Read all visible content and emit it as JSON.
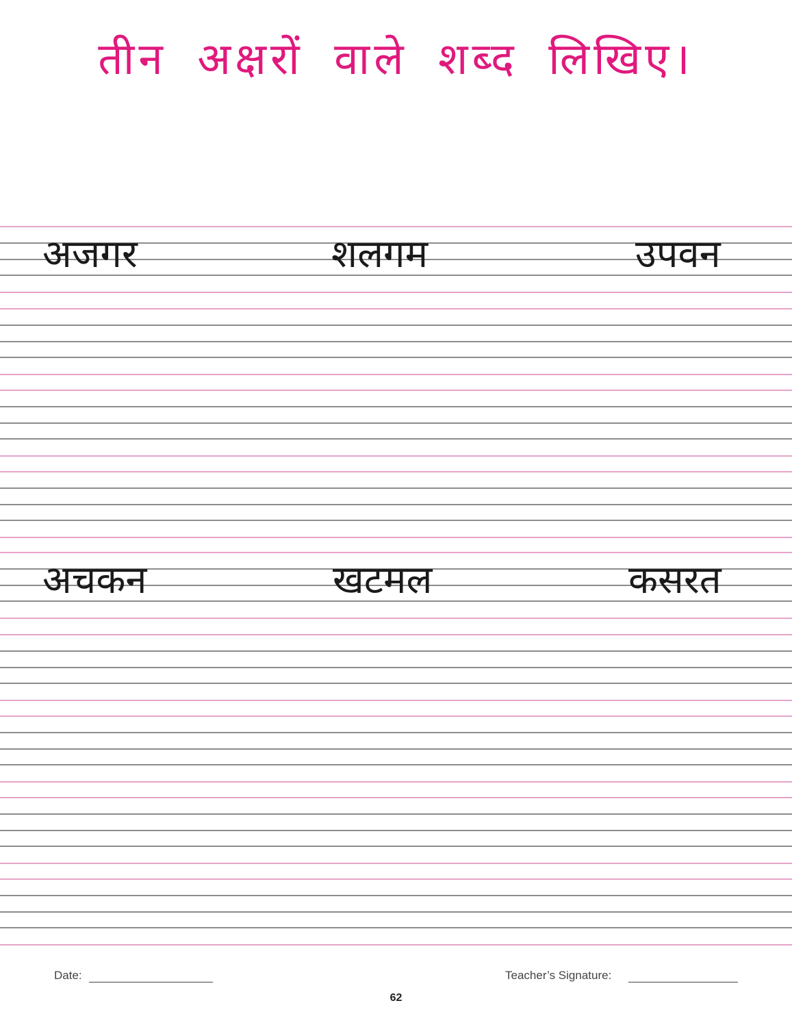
{
  "title": "तीन अक्षरों वाले शब्द लिखिए।",
  "colors": {
    "title": "#e0197d",
    "guide_pink": "#e6a3c8",
    "guide_gray": "#8c8c8c"
  },
  "rows": [
    {
      "words": [
        "अजगर",
        "शलगम",
        "उपवन"
      ]
    },
    {
      "words": [
        "अचकन",
        "खटमल",
        "कसरत"
      ]
    }
  ],
  "footer": {
    "date_label": "Date:",
    "signature_label": "Teacher’s Signature:",
    "page_number": "62"
  }
}
